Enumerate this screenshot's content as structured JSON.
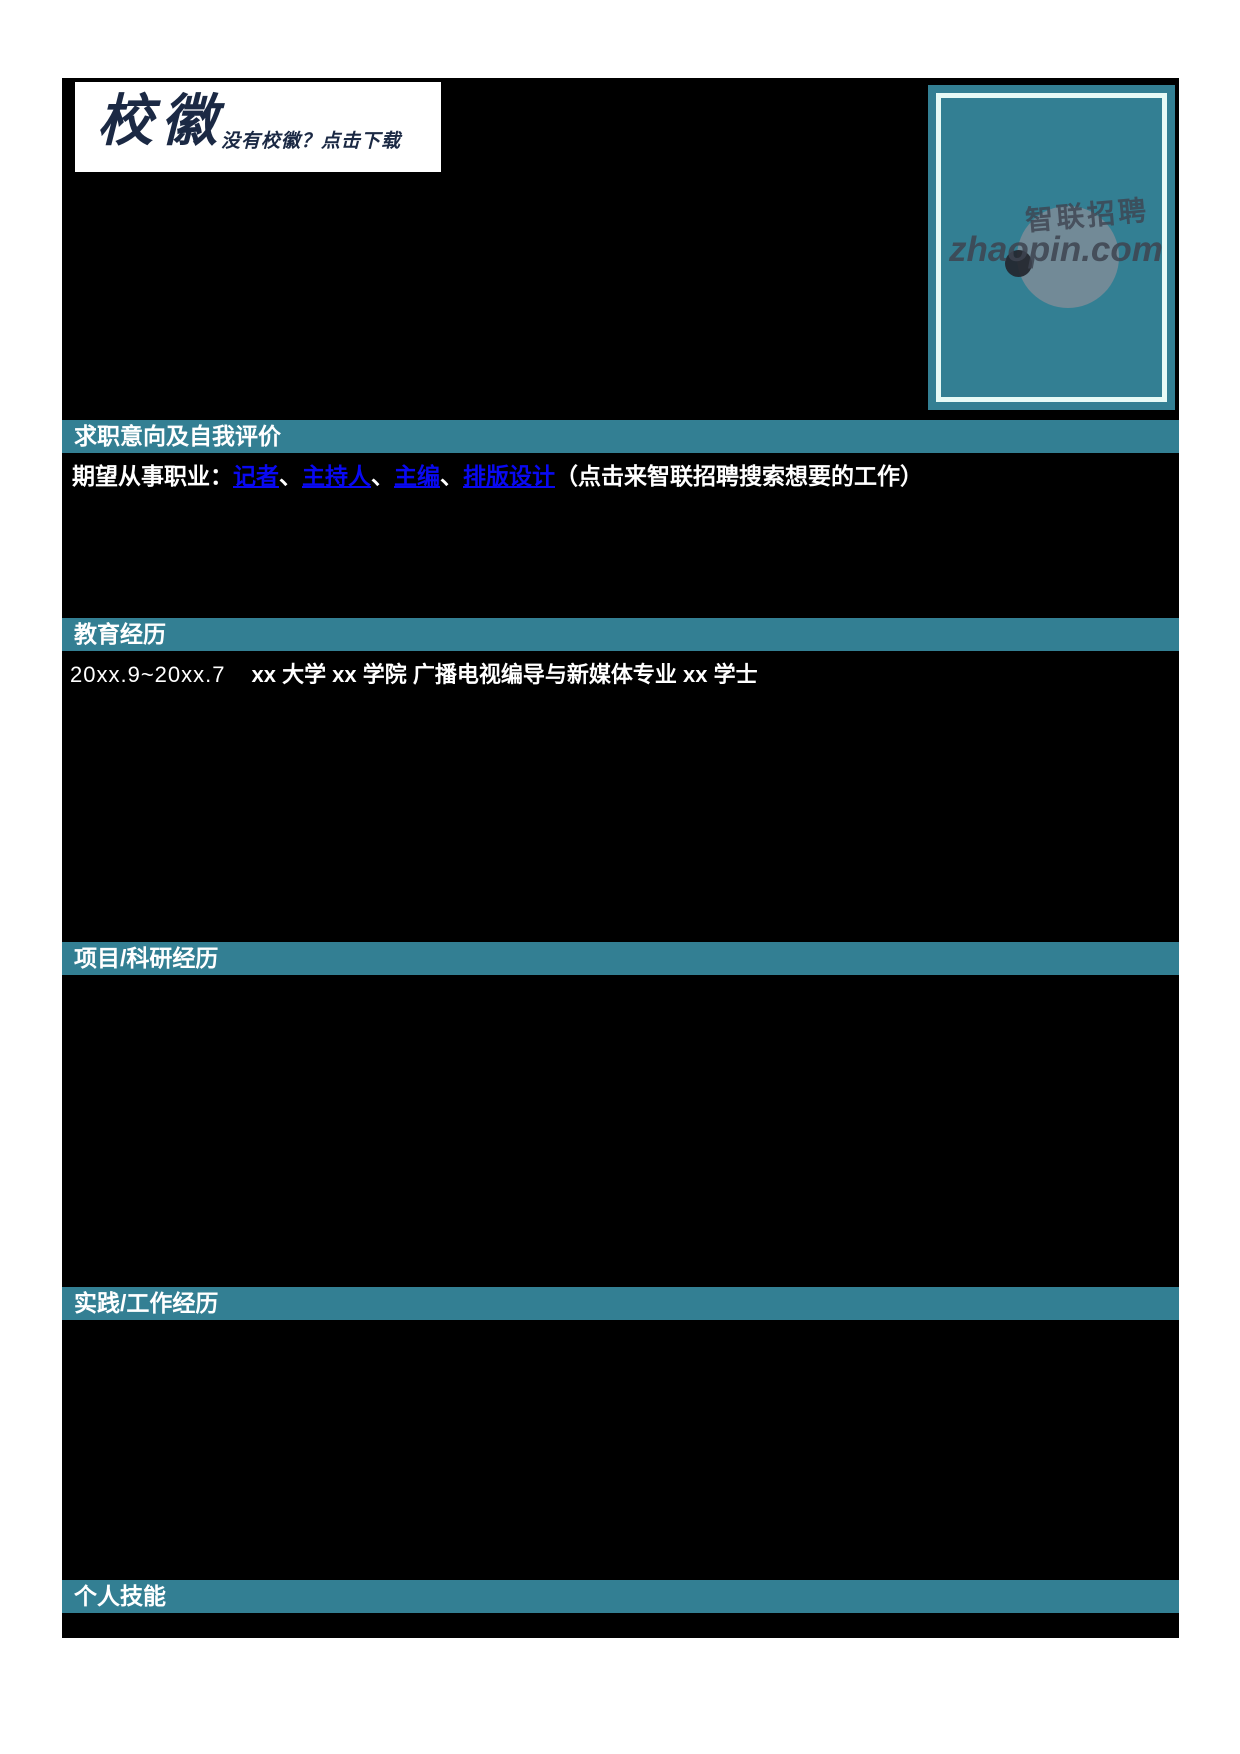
{
  "theme": {
    "accent": "#337F93",
    "link": "#0909F2",
    "navy": "#1B2944",
    "page_bg": "#FFFFFF",
    "content_bg": "#000000",
    "photo_border": "#E7FAF6"
  },
  "logo_box": {
    "title": "校徽",
    "hint": "没有校徽？点击下载"
  },
  "photo": {
    "watermark_cn": "智联招聘",
    "watermark_en": "zhaopin.com"
  },
  "sections": [
    {
      "title": "求职意向及自我评价"
    },
    {
      "title": "教育经历"
    },
    {
      "title": "项目/科研经历"
    },
    {
      "title": "实践/工作经历"
    },
    {
      "title": "个人技能"
    }
  ],
  "intention": {
    "prefix": "期望从事职业：",
    "links": [
      "记者",
      "主持人",
      "主编",
      "排版设计"
    ],
    "separator": "、",
    "note": "（点击来智联招聘搜索想要的工作）"
  },
  "education": {
    "period": "20xx.9~20xx.7",
    "detail": "xx 大学  xx 学院  广播电视编导与新媒体专业  xx 学士"
  }
}
